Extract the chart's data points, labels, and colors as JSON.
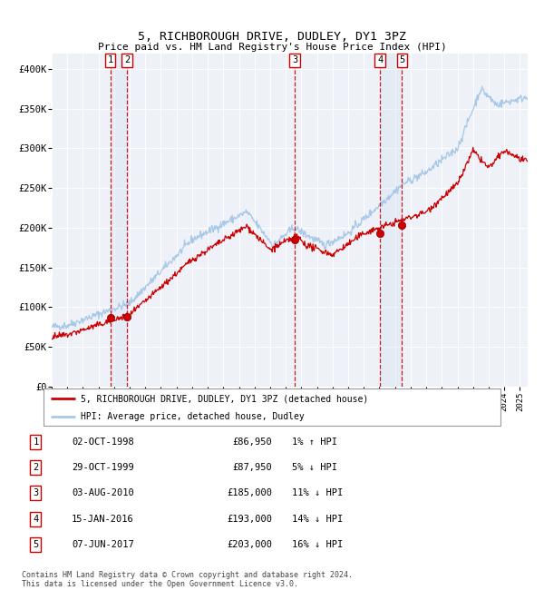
{
  "title": "5, RICHBOROUGH DRIVE, DUDLEY, DY1 3PZ",
  "subtitle": "Price paid vs. HM Land Registry's House Price Index (HPI)",
  "ylim": [
    0,
    420000
  ],
  "yticks": [
    0,
    50000,
    100000,
    150000,
    200000,
    250000,
    300000,
    350000,
    400000
  ],
  "ytick_labels": [
    "£0",
    "£50K",
    "£100K",
    "£150K",
    "£200K",
    "£250K",
    "£300K",
    "£350K",
    "£400K"
  ],
  "hpi_color": "#a8c8e8",
  "price_color": "#cc0000",
  "dot_color": "#cc0000",
  "bg_color": "#eef2f8",
  "grid_color": "#ffffff",
  "shade_color": "#c8d8ee",
  "transactions": [
    {
      "num": 1,
      "date": "02-OCT-1998",
      "year": 1998.75,
      "price": 86950
    },
    {
      "num": 2,
      "date": "29-OCT-1999",
      "year": 1999.83,
      "price": 87950
    },
    {
      "num": 3,
      "date": "03-AUG-2010",
      "year": 2010.58,
      "price": 185000
    },
    {
      "num": 4,
      "date": "15-JAN-2016",
      "year": 2016.04,
      "price": 193000
    },
    {
      "num": 5,
      "date": "07-JUN-2017",
      "year": 2017.44,
      "price": 203000
    }
  ],
  "legend_entries": [
    {
      "label": "5, RICHBOROUGH DRIVE, DUDLEY, DY1 3PZ (detached house)",
      "color": "#cc0000"
    },
    {
      "label": "HPI: Average price, detached house, Dudley",
      "color": "#a8c8e8"
    }
  ],
  "table_rows": [
    [
      "1",
      "02-OCT-1998",
      "£86,950",
      "1% ↑ HPI"
    ],
    [
      "2",
      "29-OCT-1999",
      "£87,950",
      "5% ↓ HPI"
    ],
    [
      "3",
      "03-AUG-2010",
      "£185,000",
      "11% ↓ HPI"
    ],
    [
      "4",
      "15-JAN-2016",
      "£193,000",
      "14% ↓ HPI"
    ],
    [
      "5",
      "07-JUN-2017",
      "£203,000",
      "16% ↓ HPI"
    ]
  ],
  "footer": "Contains HM Land Registry data © Crown copyright and database right 2024.\nThis data is licensed under the Open Government Licence v3.0.",
  "xmin": 1995.0,
  "xmax": 2025.5
}
